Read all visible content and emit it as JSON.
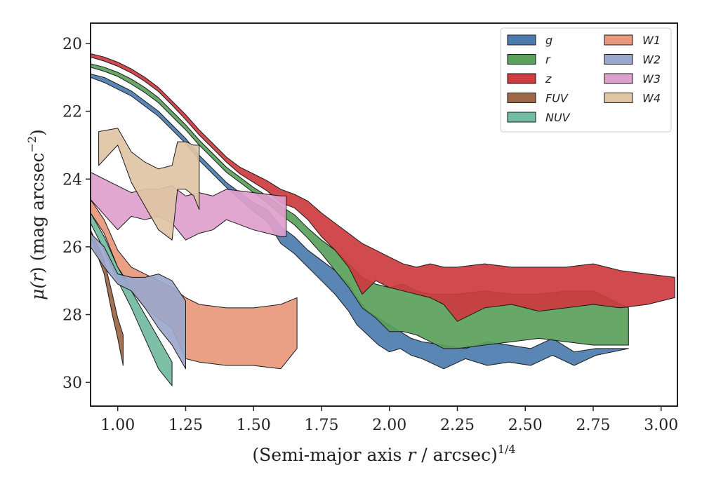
{
  "chart_data": {
    "type": "area",
    "xlabel": "(Semi-major axis r / arcsec)^1/4",
    "xlabel_parts": {
      "pre": "(Semi-major axis ",
      "var": "r",
      "post": " / arcsec)",
      "sup": "1/4"
    },
    "ylabel": "μ(r) (mag arcsec^-2)",
    "ylabel_parts": {
      "mu": "μ(",
      "var": "r",
      "rest": ") (mag arcsec",
      "sup": "−2",
      "close": ")"
    },
    "xlim": [
      0.9,
      3.06
    ],
    "ylim": [
      30.7,
      19.4
    ],
    "y_inverted": true,
    "xticks": [
      "1.00",
      "1.25",
      "1.50",
      "1.75",
      "2.00",
      "2.25",
      "2.50",
      "2.75",
      "3.00"
    ],
    "xtick_values": [
      1.0,
      1.25,
      1.5,
      1.75,
      2.0,
      2.25,
      2.5,
      2.75,
      3.0
    ],
    "yticks": [
      "20",
      "22",
      "24",
      "26",
      "28",
      "30"
    ],
    "ytick_values": [
      20,
      22,
      24,
      26,
      28,
      30
    ],
    "legend_position": "top-right",
    "legend_columns": 2,
    "series": [
      {
        "name": "g",
        "color": "#4c7caf",
        "x": [
          0.9,
          0.95,
          1.0,
          1.05,
          1.1,
          1.15,
          1.2,
          1.25,
          1.3,
          1.35,
          1.4,
          1.45,
          1.5,
          1.55,
          1.6,
          1.65,
          1.7,
          1.75,
          1.8,
          1.85,
          1.88,
          1.92,
          1.96,
          2.0,
          2.04,
          2.08,
          2.12,
          2.2,
          2.28,
          2.36,
          2.44,
          2.52,
          2.6,
          2.68,
          2.76,
          2.88
        ],
        "lo": [
          20.9,
          21.0,
          21.2,
          21.4,
          21.7,
          22.0,
          22.4,
          22.8,
          23.3,
          23.7,
          24.1,
          24.4,
          24.7,
          24.9,
          25.4,
          25.7,
          26.1,
          26.4,
          26.7,
          27.1,
          27.5,
          27.9,
          28.1,
          28.3,
          28.5,
          28.7,
          28.8,
          28.9,
          29.0,
          28.8,
          28.9,
          29.0,
          28.7,
          29.1,
          29.0,
          29.0
        ],
        "hi": [
          21.0,
          21.15,
          21.35,
          21.55,
          21.85,
          22.15,
          22.55,
          22.95,
          23.45,
          23.85,
          24.25,
          24.6,
          24.95,
          25.25,
          25.9,
          26.2,
          26.6,
          27.0,
          27.4,
          27.9,
          28.3,
          28.6,
          28.9,
          29.1,
          29.0,
          29.2,
          29.3,
          29.6,
          29.3,
          29.5,
          29.4,
          29.5,
          29.2,
          29.5,
          29.2,
          29.0
        ]
      },
      {
        "name": "r",
        "color": "#5aa05a",
        "x": [
          0.9,
          0.95,
          1.0,
          1.05,
          1.1,
          1.15,
          1.2,
          1.25,
          1.3,
          1.35,
          1.4,
          1.45,
          1.5,
          1.55,
          1.6,
          1.65,
          1.7,
          1.75,
          1.8,
          1.85,
          1.9,
          1.95,
          2.0,
          2.05,
          2.1,
          2.15,
          2.2,
          2.25,
          2.35,
          2.45,
          2.55,
          2.65,
          2.75,
          2.88
        ],
        "lo": [
          20.6,
          20.7,
          20.85,
          21.05,
          21.3,
          21.6,
          22.0,
          22.4,
          22.85,
          23.25,
          23.65,
          23.95,
          24.25,
          24.5,
          24.8,
          25.05,
          25.45,
          25.8,
          26.1,
          26.5,
          26.9,
          27.1,
          27.2,
          27.1,
          27.3,
          27.4,
          27.4,
          27.4,
          27.3,
          27.4,
          27.4,
          27.3,
          27.3,
          27.8
        ],
        "hi": [
          20.7,
          20.82,
          20.97,
          21.2,
          21.45,
          21.75,
          22.15,
          22.55,
          23.0,
          23.4,
          23.8,
          24.1,
          24.4,
          24.7,
          25.05,
          25.35,
          25.75,
          26.2,
          26.7,
          27.2,
          27.8,
          28.1,
          28.5,
          28.5,
          28.6,
          28.8,
          29.0,
          29.0,
          28.9,
          28.8,
          28.7,
          28.8,
          28.9,
          28.9
        ]
      },
      {
        "name": "z",
        "color": "#cc3b3f",
        "x": [
          0.9,
          0.95,
          1.0,
          1.05,
          1.1,
          1.15,
          1.2,
          1.25,
          1.3,
          1.35,
          1.4,
          1.45,
          1.5,
          1.55,
          1.6,
          1.65,
          1.7,
          1.75,
          1.8,
          1.85,
          1.9,
          1.95,
          2.0,
          2.05,
          2.1,
          2.15,
          2.2,
          2.25,
          2.35,
          2.45,
          2.55,
          2.65,
          2.75,
          2.85,
          2.95,
          3.05
        ],
        "lo": [
          20.3,
          20.4,
          20.55,
          20.75,
          21.0,
          21.3,
          21.7,
          22.1,
          22.55,
          22.95,
          23.35,
          23.65,
          23.85,
          24.05,
          24.3,
          24.45,
          24.65,
          25.0,
          25.3,
          25.6,
          25.9,
          26.1,
          26.3,
          26.5,
          26.6,
          26.5,
          26.6,
          26.6,
          26.5,
          26.6,
          26.6,
          26.6,
          26.5,
          26.7,
          26.8,
          26.9
        ],
        "hi": [
          20.4,
          20.52,
          20.67,
          20.87,
          21.12,
          21.42,
          21.82,
          22.25,
          22.7,
          23.1,
          23.5,
          23.85,
          24.1,
          24.35,
          24.7,
          24.85,
          25.2,
          25.7,
          26.1,
          26.6,
          27.4,
          27.0,
          27.2,
          27.3,
          27.4,
          27.5,
          27.7,
          28.2,
          27.8,
          27.7,
          27.9,
          27.8,
          27.7,
          27.8,
          27.7,
          27.5
        ]
      },
      {
        "name": "FUV",
        "color": "#9e6646",
        "x": [
          0.9,
          0.95,
          0.98,
          1.0,
          1.02
        ],
        "lo": [
          25.5,
          26.4,
          27.4,
          28.1,
          28.6
        ],
        "hi": [
          25.7,
          26.8,
          28.0,
          28.7,
          29.5
        ]
      },
      {
        "name": "NUV",
        "color": "#72bba0",
        "x": [
          0.9,
          0.95,
          1.0,
          1.05,
          1.1,
          1.15,
          1.2
        ],
        "lo": [
          25.0,
          25.7,
          26.6,
          27.3,
          28.0,
          28.7,
          29.4
        ],
        "hi": [
          25.3,
          26.1,
          27.0,
          27.8,
          28.7,
          29.6,
          30.1
        ]
      },
      {
        "name": "W1",
        "color": "#e8987b",
        "x": [
          0.9,
          0.95,
          1.0,
          1.05,
          1.1,
          1.2,
          1.25,
          1.3,
          1.4,
          1.5,
          1.6,
          1.66
        ],
        "lo": [
          24.6,
          25.2,
          26.1,
          26.6,
          26.8,
          27.2,
          27.5,
          27.7,
          27.8,
          27.8,
          27.7,
          27.5
        ],
        "hi": [
          25.0,
          25.6,
          26.6,
          27.2,
          27.8,
          28.4,
          29.3,
          29.4,
          29.5,
          29.5,
          29.6,
          29.0
        ]
      },
      {
        "name": "W2",
        "color": "#9ba7cc",
        "x": [
          0.9,
          0.95,
          1.0,
          1.05,
          1.1,
          1.15,
          1.2,
          1.25
        ],
        "lo": [
          25.6,
          26.0,
          26.8,
          26.9,
          26.9,
          26.8,
          27.0,
          27.6
        ],
        "hi": [
          26.0,
          26.6,
          27.1,
          27.3,
          27.8,
          28.4,
          28.9,
          29.6
        ]
      },
      {
        "name": "W3",
        "color": "#e0a0cc",
        "x": [
          0.9,
          1.0,
          1.05,
          1.1,
          1.15,
          1.2,
          1.25,
          1.3,
          1.35,
          1.4,
          1.5,
          1.6,
          1.62
        ],
        "lo": [
          23.8,
          24.2,
          24.4,
          24.3,
          24.3,
          24.2,
          24.5,
          24.4,
          24.5,
          24.3,
          24.4,
          24.5,
          24.5
        ],
        "hi": [
          24.6,
          25.5,
          25.1,
          25.2,
          25.1,
          25.3,
          25.8,
          25.6,
          25.5,
          25.2,
          25.5,
          25.7,
          25.7
        ]
      },
      {
        "name": "W4",
        "color": "#e0c4a4",
        "x": [
          0.93,
          1.0,
          1.05,
          1.1,
          1.15,
          1.2,
          1.22,
          1.25,
          1.28,
          1.3
        ],
        "lo": [
          22.6,
          22.5,
          23.2,
          23.5,
          23.7,
          23.6,
          22.9,
          22.9,
          23.0,
          23.0
        ],
        "hi": [
          23.6,
          23.0,
          24.1,
          24.8,
          25.5,
          25.8,
          24.3,
          24.3,
          24.5,
          24.9
        ]
      }
    ]
  }
}
